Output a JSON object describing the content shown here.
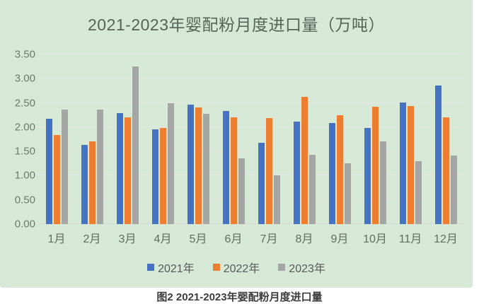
{
  "page": {
    "caption": "图2  2021-2023年婴配粉月度进口量"
  },
  "chart_data": {
    "type": "bar",
    "title": "2021-2023年婴配粉月度进口量（万吨）",
    "categories": [
      "1月",
      "2月",
      "3月",
      "4月",
      "5月",
      "6月",
      "7月",
      "8月",
      "9月",
      "10月",
      "11月",
      "12月"
    ],
    "series": [
      {
        "name": "2021年",
        "color": "#4472c4",
        "values": [
          2.17,
          1.63,
          2.29,
          1.95,
          2.47,
          2.34,
          1.68,
          2.12,
          2.09,
          1.98,
          2.51,
          2.86
        ]
      },
      {
        "name": "2022年",
        "color": "#ed7d31",
        "values": [
          1.84,
          1.7,
          2.2,
          1.98,
          2.4,
          2.21,
          2.19,
          2.62,
          2.24,
          2.42,
          2.44,
          2.21
        ]
      },
      {
        "name": "2023年",
        "color": "#a5a5a5",
        "values": [
          2.36,
          2.36,
          3.25,
          2.49,
          2.27,
          1.36,
          1.0,
          1.43,
          1.25,
          1.7,
          1.3,
          1.42
        ]
      }
    ],
    "xlabel": "",
    "ylabel": "",
    "ylim": [
      0,
      3.5
    ],
    "yticks": [
      "0.00",
      "0.50",
      "1.00",
      "1.50",
      "2.00",
      "2.50",
      "3.00",
      "3.50"
    ],
    "grid": true,
    "legend_position": "bottom",
    "background_color": "#d5e9d6"
  }
}
